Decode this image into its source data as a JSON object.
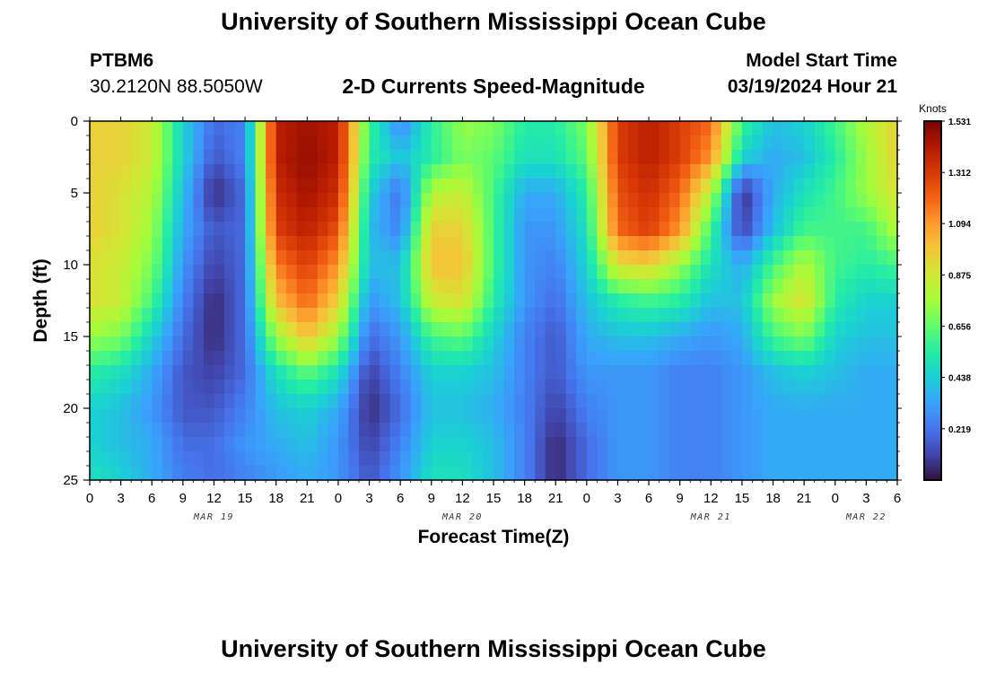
{
  "header": {
    "title": "University of Southern Mississippi Ocean Cube",
    "station_id": "PTBM6",
    "station_coords": "30.2120N  88.5050W",
    "plot_title": "2-D Currents Speed-Magnitude",
    "model_start_label": "Model Start Time",
    "model_start_value": "03/19/2024 Hour 21"
  },
  "footer": {
    "title": "University of Southern Mississippi Ocean Cube"
  },
  "chart_data": {
    "type": "heatmap",
    "title": "2-D Currents Speed-Magnitude",
    "xlabel": "Forecast Time(Z)",
    "ylabel": "Depth (ft)",
    "x_unit": "hours since 2024-03-19 00Z",
    "xlim": [
      0,
      78
    ],
    "ylim": [
      0,
      25
    ],
    "x_ticks": [
      0,
      3,
      6,
      9,
      12,
      15,
      18,
      21,
      24,
      27,
      30,
      33,
      36,
      39,
      42,
      45,
      48,
      51,
      54,
      57,
      60,
      63,
      66,
      69,
      72,
      75,
      78
    ],
    "x_tick_labels": [
      "0",
      "3",
      "6",
      "9",
      "12",
      "15",
      "18",
      "21",
      "0",
      "3",
      "6",
      "9",
      "12",
      "15",
      "18",
      "21",
      "0",
      "3",
      "6",
      "9",
      "12",
      "15",
      "18",
      "21",
      "0",
      "3",
      "6"
    ],
    "date_labels": [
      {
        "x": 12,
        "label": "MAR 19"
      },
      {
        "x": 36,
        "label": "MAR 20"
      },
      {
        "x": 60,
        "label": "MAR 21"
      },
      {
        "x": 75,
        "label": "MAR 22"
      }
    ],
    "y_ticks": [
      0,
      5,
      10,
      15,
      20,
      25
    ],
    "y_tick_labels": [
      "0",
      "5",
      "10",
      "15",
      "20",
      "25"
    ],
    "colorbar": {
      "unit_label": "Knots",
      "min": 0.0,
      "max": 1.531,
      "tick_values": [
        1.531,
        1.312,
        1.094,
        0.875,
        0.656,
        0.438,
        0.219
      ],
      "tick_labels": [
        "1.531",
        "1.312",
        "1.094",
        "0.875",
        "0.656",
        "0.438",
        "0.219"
      ],
      "colors": [
        "#30123b",
        "#4145ab",
        "#4675ed",
        "#39a2fc",
        "#1bcfd4",
        "#24eca6",
        "#61fc6c",
        "#a4fc3b",
        "#d1e834",
        "#f3c63a",
        "#fe9b2d",
        "#f36315",
        "#d93806",
        "#b11901",
        "#7a0402"
      ]
    },
    "depth_levels_ft": [
      0,
      2.5,
      5,
      7.5,
      10,
      12.5,
      15,
      17.5,
      20,
      22.5,
      25
    ],
    "time_points_h": [
      0,
      3,
      6,
      9,
      12,
      15,
      18,
      21,
      24,
      27,
      30,
      33,
      36,
      39,
      42,
      45,
      48,
      51,
      54,
      57,
      60,
      63,
      66,
      69,
      72,
      75,
      78
    ],
    "speed_knots_by_depth": [
      [
        0.95,
        0.95,
        0.85,
        0.45,
        0.2,
        0.25,
        1.4,
        1.45,
        1.4,
        0.6,
        0.25,
        0.55,
        0.75,
        0.7,
        0.55,
        0.55,
        0.7,
        1.3,
        1.4,
        1.3,
        1.2,
        0.6,
        0.4,
        0.45,
        0.6,
        0.8,
        0.95
      ],
      [
        0.95,
        0.95,
        0.85,
        0.45,
        0.15,
        0.25,
        1.4,
        1.48,
        1.4,
        0.55,
        0.4,
        0.55,
        0.7,
        0.65,
        0.5,
        0.5,
        0.65,
        1.3,
        1.4,
        1.3,
        1.1,
        0.45,
        0.35,
        0.4,
        0.55,
        0.75,
        0.95
      ],
      [
        0.95,
        0.9,
        0.8,
        0.4,
        0.05,
        0.2,
        1.35,
        1.45,
        1.35,
        0.45,
        0.2,
        0.8,
        0.85,
        0.6,
        0.35,
        0.35,
        0.55,
        1.25,
        1.35,
        1.2,
        0.8,
        0.05,
        0.35,
        0.5,
        0.6,
        0.75,
        0.9
      ],
      [
        0.95,
        0.9,
        0.75,
        0.35,
        0.15,
        0.2,
        1.3,
        1.4,
        1.25,
        0.4,
        0.25,
        0.95,
        0.95,
        0.6,
        0.3,
        0.3,
        0.5,
        1.2,
        1.3,
        1.1,
        0.6,
        0.1,
        0.4,
        0.6,
        0.6,
        0.6,
        0.8
      ],
      [
        0.9,
        0.85,
        0.7,
        0.3,
        0.1,
        0.2,
        1.15,
        1.3,
        1.1,
        0.4,
        0.4,
        1.0,
        1.0,
        0.6,
        0.3,
        0.25,
        0.45,
        0.9,
        0.95,
        0.75,
        0.5,
        0.35,
        0.6,
        0.8,
        0.6,
        0.55,
        0.6
      ],
      [
        0.9,
        0.85,
        0.6,
        0.25,
        0.05,
        0.2,
        1.0,
        1.2,
        0.95,
        0.3,
        0.4,
        0.85,
        0.9,
        0.55,
        0.3,
        0.2,
        0.4,
        0.55,
        0.6,
        0.55,
        0.4,
        0.4,
        0.75,
        0.9,
        0.55,
        0.45,
        0.45
      ],
      [
        0.75,
        0.7,
        0.45,
        0.2,
        0.05,
        0.2,
        0.75,
        1.0,
        0.75,
        0.2,
        0.3,
        0.6,
        0.65,
        0.45,
        0.25,
        0.15,
        0.35,
        0.4,
        0.4,
        0.35,
        0.3,
        0.35,
        0.6,
        0.7,
        0.45,
        0.4,
        0.4
      ],
      [
        0.55,
        0.5,
        0.35,
        0.15,
        0.1,
        0.2,
        0.5,
        0.65,
        0.5,
        0.1,
        0.25,
        0.45,
        0.45,
        0.4,
        0.25,
        0.15,
        0.3,
        0.3,
        0.3,
        0.25,
        0.25,
        0.3,
        0.4,
        0.45,
        0.4,
        0.35,
        0.35
      ],
      [
        0.45,
        0.4,
        0.3,
        0.15,
        0.15,
        0.25,
        0.4,
        0.45,
        0.35,
        0.05,
        0.2,
        0.4,
        0.4,
        0.35,
        0.25,
        0.1,
        0.25,
        0.3,
        0.3,
        0.25,
        0.25,
        0.3,
        0.35,
        0.35,
        0.35,
        0.35,
        0.35
      ],
      [
        0.45,
        0.4,
        0.35,
        0.2,
        0.2,
        0.3,
        0.35,
        0.4,
        0.3,
        0.1,
        0.25,
        0.45,
        0.45,
        0.4,
        0.25,
        0.05,
        0.2,
        0.3,
        0.3,
        0.25,
        0.25,
        0.3,
        0.35,
        0.35,
        0.35,
        0.35,
        0.35
      ],
      [
        0.5,
        0.45,
        0.35,
        0.25,
        0.2,
        0.25,
        0.3,
        0.35,
        0.3,
        0.15,
        0.3,
        0.5,
        0.5,
        0.4,
        0.25,
        0.05,
        0.2,
        0.3,
        0.3,
        0.25,
        0.25,
        0.3,
        0.35,
        0.35,
        0.35,
        0.35,
        0.35
      ]
    ]
  }
}
